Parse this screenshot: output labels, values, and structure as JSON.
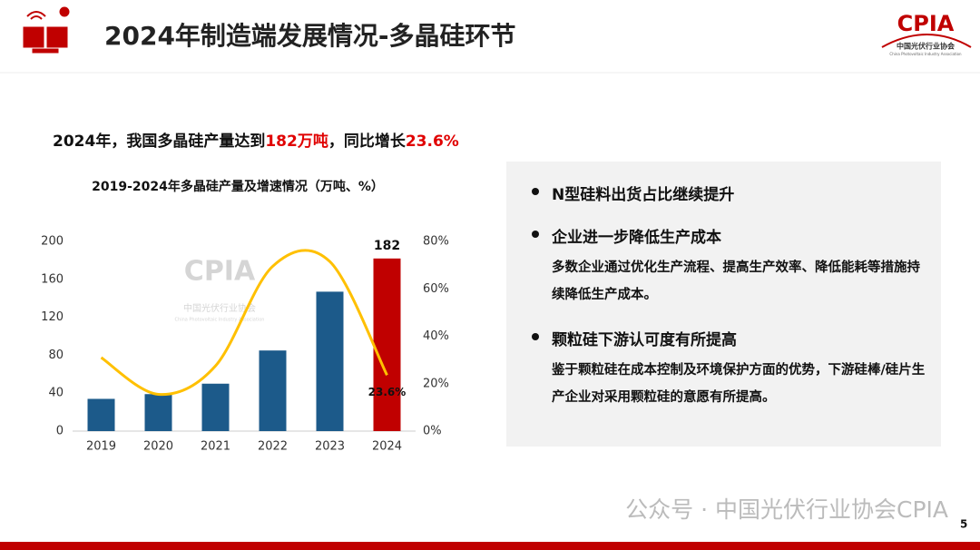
{
  "header": {
    "title": "2024年制造端发展情况-多晶硅环节",
    "logo": "CPIA",
    "logo_subtitle": "中国光伏行业协会",
    "logo_english": "China Photovoltaic Industry Association"
  },
  "headline": [
    "2024年，我国多晶硅产量达到",
    "182万吨",
    "，同比增长",
    "23.6%"
  ],
  "chart_data": {
    "type": "bar",
    "title": "2019-2024年多晶硅产量及增速情况（万吨、%）",
    "watermark": "CPIA",
    "watermark_subtitle": "中国光伏行业协会",
    "watermark_english": "China Photovoltaic Industry Association",
    "categories": [
      "2019",
      "2020",
      "2021",
      "2022",
      "2023",
      "2024"
    ],
    "series": [
      {
        "type": "bar",
        "colors": [
          "#1c5a8a",
          "#1c5a8a",
          "#1c5a8a",
          "#1c5a8a",
          "#1c5a8a",
          "#c00000"
        ],
        "values": [
          34,
          39,
          50,
          85,
          147,
          182
        ],
        "value_labels": [
          null,
          null,
          null,
          null,
          null,
          "182"
        ]
      },
      {
        "type": "line",
        "axis": "y2",
        "color": "#ffc000",
        "values": [
          31,
          15.5,
          27.5,
          69.5,
          71.5,
          23.6
        ],
        "value_labels": [
          null,
          null,
          null,
          null,
          null,
          "23.6%"
        ]
      }
    ],
    "ylim": [
      0,
      200
    ],
    "yticks": [
      0,
      40,
      80,
      120,
      160,
      200
    ],
    "y2lim": [
      0,
      80
    ],
    "y2ticks": [
      {
        "value": 0,
        "label": "0%"
      },
      {
        "value": 20,
        "label": "20%"
      },
      {
        "value": 40,
        "label": "40%"
      },
      {
        "value": 60,
        "label": "60%"
      },
      {
        "value": 80,
        "label": "80%"
      }
    ],
    "grid": false
  },
  "bullets": [
    {
      "title": "N型硅料出货占比继续提升"
    },
    {
      "title": "企业进一步降低生产成本",
      "detail": "多数企业通过优化生产流程、提高生产效率、降低能耗等措施持续降低生产成本。"
    },
    {
      "title": "颗粒硅下游认可度有所提高",
      "detail": "鉴于颗粒硅在成本控制及环境保护方面的优势，下游硅棒/硅片生产企业对采用颗粒硅的意愿有所提高。"
    }
  ],
  "footer": {
    "watermark": "公众号 · 中国光伏行业协会CPIA",
    "page": "5"
  }
}
